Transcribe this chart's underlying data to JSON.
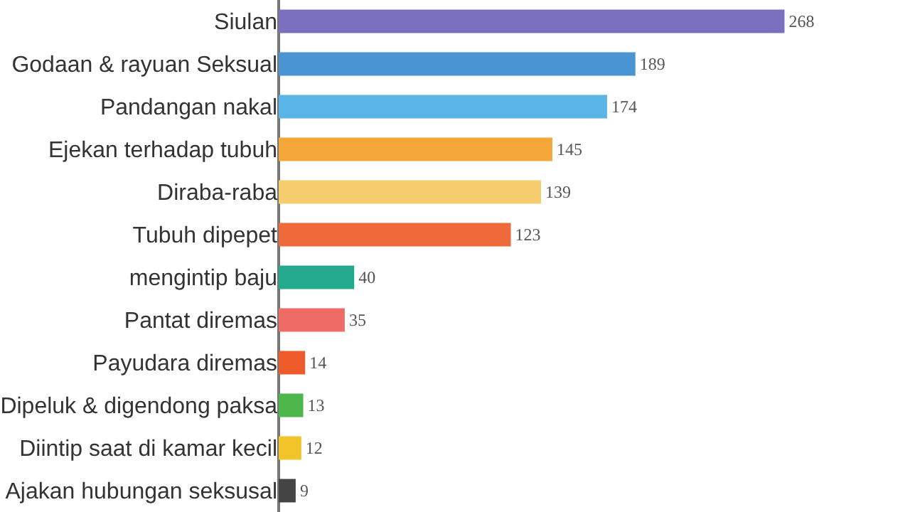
{
  "chart_data": {
    "type": "bar",
    "orientation": "horizontal",
    "data_labels": true,
    "categories": [
      "Siulan",
      "Godaan & rayuan Seksual",
      "Pandangan nakal",
      "Ejekan terhadap tubuh",
      "Diraba-raba",
      "Tubuh dipepet",
      "mengintip baju",
      "Pantat diremas",
      "Payudara diremas",
      "Dipeluk & digendong paksa",
      "Diintip saat di kamar kecil",
      "Ajakan hubungan seksusal"
    ],
    "values": [
      268,
      189,
      174,
      145,
      139,
      123,
      40,
      35,
      14,
      13,
      12,
      9
    ],
    "colors": [
      "#7b70c0",
      "#4a94d2",
      "#5ab4e6",
      "#f5a638",
      "#f5cc6e",
      "#ef6a3a",
      "#25a98e",
      "#ee6b66",
      "#ef5a2a",
      "#4cb64a",
      "#f2c42a",
      "#444444"
    ],
    "legend": false
  }
}
